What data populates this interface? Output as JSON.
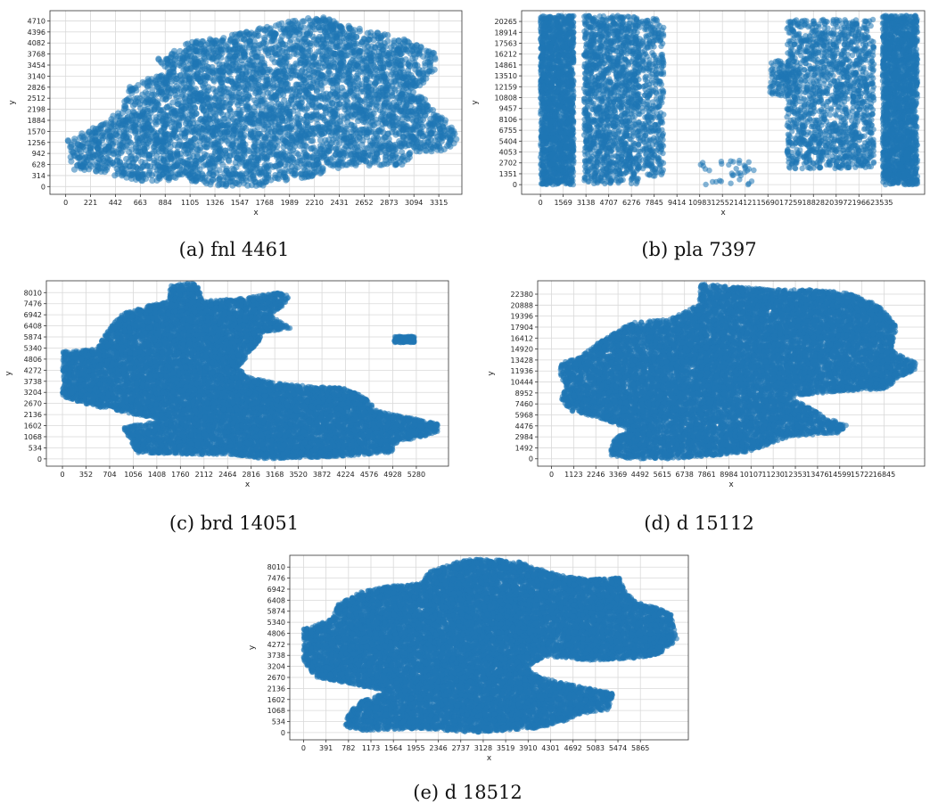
{
  "chart_data": [
    {
      "id": "a",
      "type": "scatter",
      "caption": "(a) fnl 4461",
      "xlabel": "x",
      "ylabel": "y",
      "grid": true,
      "xlim": [
        -140,
        3520
      ],
      "ylim": [
        -220,
        5000
      ],
      "xticks": [
        0,
        221,
        442,
        663,
        884,
        1105,
        1326,
        1547,
        1768,
        1989,
        2210,
        2431,
        2652,
        2873,
        3094,
        3315
      ],
      "yticks": [
        0,
        314,
        628,
        942,
        1256,
        1570,
        1884,
        2198,
        2512,
        2826,
        3140,
        3454,
        3768,
        4082,
        4396,
        4710
      ],
      "color": "#1f77b4",
      "n_points": 4461,
      "point_alpha": 0.55,
      "regions": [
        {
          "poly": [
            [
              0,
              1300
            ],
            [
              200,
              1600
            ],
            [
              500,
              2200
            ],
            [
              550,
              2800
            ],
            [
              900,
              3300
            ],
            [
              800,
              3600
            ],
            [
              1100,
              4100
            ],
            [
              1400,
              4250
            ],
            [
              2000,
              4700
            ],
            [
              2250,
              4850
            ],
            [
              2500,
              4600
            ],
            [
              3000,
              4200
            ],
            [
              3300,
              3800
            ],
            [
              3300,
              3300
            ],
            [
              3200,
              3000
            ],
            [
              3100,
              2700
            ],
            [
              3200,
              2500
            ],
            [
              3300,
              2200
            ],
            [
              3350,
              2000
            ],
            [
              3450,
              1600
            ],
            [
              3500,
              1300
            ],
            [
              3350,
              1000
            ],
            [
              3100,
              1000
            ],
            [
              3000,
              600
            ],
            [
              2500,
              600
            ],
            [
              2200,
              300
            ],
            [
              1700,
              0
            ],
            [
              1400,
              0
            ],
            [
              1000,
              200
            ],
            [
              700,
              150
            ],
            [
              300,
              400
            ],
            [
              0,
              500
            ],
            [
              50,
              900
            ]
          ],
          "weight": 1.0
        }
      ]
    },
    {
      "id": "b",
      "type": "scatter",
      "caption": "(b) pla 7397",
      "xlabel": "x",
      "ylabel": "y",
      "grid": true,
      "xlim": [
        -1300,
        26500
      ],
      "ylim": [
        -1200,
        21600
      ],
      "xticks": [
        0,
        1569,
        3138,
        4707,
        6276,
        7845,
        9414,
        10983,
        12552,
        14121,
        15690,
        17259,
        18828,
        20397,
        21966,
        23535
      ],
      "yticks": [
        0,
        1351,
        2702,
        4053,
        5404,
        6755,
        8106,
        9457,
        10808,
        12159,
        13510,
        14861,
        16212,
        17563,
        18914,
        20265
      ],
      "color": "#1f77b4",
      "n_points": 7397,
      "point_alpha": 0.55,
      "regions": [
        {
          "poly": [
            [
              0,
              0
            ],
            [
              2300,
              0
            ],
            [
              2300,
              21000
            ],
            [
              0,
              21000
            ]
          ],
          "weight": 0.26
        },
        {
          "poly": [
            [
              23600,
              0
            ],
            [
              26000,
              0
            ],
            [
              26000,
              21000
            ],
            [
              23600,
              21000
            ]
          ],
          "weight": 0.26
        },
        {
          "poly": [
            [
              3000,
              100
            ],
            [
              6900,
              100
            ],
            [
              6900,
              21000
            ],
            [
              3000,
              21000
            ]
          ],
          "weight": 0.2
        },
        {
          "poly": [
            [
              7000,
              1000
            ],
            [
              8500,
              1000
            ],
            [
              8500,
              20600
            ],
            [
              7000,
              20600
            ]
          ],
          "weight": 0.05
        },
        {
          "poly": [
            [
              17000,
              2000
            ],
            [
              23000,
              2000
            ],
            [
              23000,
              20500
            ],
            [
              17000,
              20500
            ]
          ],
          "weight": 0.2
        },
        {
          "poly": [
            [
              15800,
              11000
            ],
            [
              17500,
              11000
            ],
            [
              17500,
              15500
            ],
            [
              15800,
              15500
            ]
          ],
          "weight": 0.015
        },
        {
          "poly": [
            [
              11000,
              0
            ],
            [
              15000,
              0
            ],
            [
              15000,
              3000
            ],
            [
              11000,
              3000
            ]
          ],
          "weight": 0.005
        }
      ]
    },
    {
      "id": "c",
      "type": "scatter",
      "caption": "(c) brd 14051",
      "xlabel": "x",
      "ylabel": "y",
      "grid": true,
      "xlim": [
        -240,
        5760
      ],
      "ylim": [
        -350,
        8580
      ],
      "xticks": [
        0,
        352,
        704,
        1056,
        1408,
        1760,
        2112,
        2464,
        2816,
        3168,
        3520,
        3872,
        4224,
        4576,
        4928,
        5280
      ],
      "yticks": [
        0,
        534,
        1068,
        1602,
        2136,
        2670,
        3204,
        3738,
        4272,
        4806,
        5340,
        5874,
        6408,
        6942,
        7476,
        8010
      ],
      "color": "#1f77b4",
      "n_points": 14051,
      "point_alpha": 0.6,
      "regions": [
        {
          "poly": [
            [
              0,
              5200
            ],
            [
              500,
              5300
            ],
            [
              700,
              6300
            ],
            [
              900,
              7000
            ],
            [
              1300,
              7400
            ],
            [
              1600,
              7600
            ],
            [
              1600,
              8400
            ],
            [
              2000,
              8500
            ],
            [
              2100,
              7600
            ],
            [
              2600,
              7700
            ],
            [
              3200,
              8000
            ],
            [
              3400,
              7900
            ],
            [
              3300,
              7400
            ],
            [
              3100,
              6900
            ],
            [
              3300,
              6500
            ],
            [
              3400,
              6300
            ],
            [
              3000,
              6100
            ],
            [
              2900,
              5500
            ],
            [
              2800,
              5200
            ],
            [
              2700,
              4700
            ],
            [
              2600,
              4400
            ],
            [
              2800,
              3900
            ],
            [
              3300,
              3600
            ],
            [
              3700,
              3500
            ],
            [
              4200,
              3400
            ],
            [
              4500,
              3000
            ],
            [
              4700,
              2300
            ],
            [
              5300,
              1900
            ],
            [
              5600,
              1700
            ],
            [
              5600,
              1300
            ],
            [
              5400,
              1100
            ],
            [
              5000,
              800
            ],
            [
              4900,
              300
            ],
            [
              4000,
              100
            ],
            [
              3000,
              0
            ],
            [
              2500,
              200
            ],
            [
              2000,
              200
            ],
            [
              1100,
              300
            ],
            [
              1000,
              1000
            ],
            [
              900,
              1500
            ],
            [
              1500,
              1900
            ],
            [
              1000,
              2200
            ],
            [
              400,
              2600
            ],
            [
              0,
              3000
            ],
            [
              0,
              4000
            ]
          ],
          "weight": 1.0
        },
        {
          "poly": [
            [
              4950,
              5600
            ],
            [
              5250,
              5600
            ],
            [
              5250,
              5900
            ],
            [
              4950,
              5900
            ]
          ],
          "weight": 0.01
        }
      ]
    },
    {
      "id": "d",
      "type": "scatter",
      "caption": "(d) d 15112",
      "xlabel": "x",
      "ylabel": "y",
      "grid": true,
      "xlim": [
        -700,
        18900
      ],
      "ylim": [
        -1000,
        24200
      ],
      "xticks": [
        0,
        1123,
        2246,
        3369,
        4492,
        5615,
        6738,
        7861,
        8984,
        10107,
        11230,
        12353,
        13476,
        14599,
        15722,
        16845
      ],
      "yticks": [
        0,
        1492,
        2984,
        4476,
        5968,
        7460,
        8952,
        10444,
        11936,
        13428,
        14920,
        16412,
        17904,
        19396,
        20888,
        22380
      ],
      "color": "#1f77b4",
      "n_points": 15112,
      "point_alpha": 0.6,
      "regions": [
        {
          "poly": [
            [
              500,
              13000
            ],
            [
              1500,
              14000
            ],
            [
              2500,
              16000
            ],
            [
              4000,
              18500
            ],
            [
              6000,
              19000
            ],
            [
              7500,
              21000
            ],
            [
              7500,
              23800
            ],
            [
              9000,
              23500
            ],
            [
              11000,
              23000
            ],
            [
              13500,
              23000
            ],
            [
              15000,
              22500
            ],
            [
              16500,
              21000
            ],
            [
              17500,
              18000
            ],
            [
              17200,
              15000
            ],
            [
              17700,
              14000
            ],
            [
              18500,
              13000
            ],
            [
              18400,
              12000
            ],
            [
              17500,
              11000
            ],
            [
              17000,
              9500
            ],
            [
              14000,
              9000
            ],
            [
              12000,
              8500
            ],
            [
              13000,
              7000
            ],
            [
              14000,
              5500
            ],
            [
              15000,
              4500
            ],
            [
              14500,
              3500
            ],
            [
              12000,
              3000
            ],
            [
              10000,
              1000
            ],
            [
              8500,
              500
            ],
            [
              6000,
              0
            ],
            [
              4000,
              0
            ],
            [
              3000,
              500
            ],
            [
              3000,
              2500
            ],
            [
              4000,
              4000
            ],
            [
              2500,
              5500
            ],
            [
              1000,
              6500
            ],
            [
              500,
              8000
            ],
            [
              700,
              10000
            ],
            [
              400,
              11500
            ]
          ],
          "weight": 1.0
        }
      ]
    },
    {
      "id": "e",
      "type": "scatter",
      "caption": "(e) d 18512",
      "xlabel": "x",
      "ylabel": "y",
      "grid": true,
      "xlim": [
        -240,
        6700
      ],
      "ylim": [
        -350,
        8580
      ],
      "xticks": [
        0,
        391,
        782,
        1173,
        1564,
        1955,
        2346,
        2737,
        3128,
        3519,
        3910,
        4301,
        4692,
        5083,
        5474,
        5865
      ],
      "yticks": [
        0,
        534,
        1068,
        1602,
        2136,
        2670,
        3204,
        3738,
        4272,
        4806,
        5340,
        5874,
        6408,
        6942,
        7476,
        8010
      ],
      "color": "#1f77b4",
      "n_points": 18512,
      "point_alpha": 0.6,
      "regions": [
        {
          "poly": [
            [
              0,
              5000
            ],
            [
              500,
              5500
            ],
            [
              600,
              6200
            ],
            [
              1000,
              6800
            ],
            [
              1500,
              7100
            ],
            [
              2000,
              7200
            ],
            [
              2200,
              7800
            ],
            [
              2700,
              8300
            ],
            [
              3000,
              8400
            ],
            [
              3700,
              8300
            ],
            [
              4500,
              7600
            ],
            [
              5000,
              7400
            ],
            [
              5500,
              7500
            ],
            [
              5600,
              6800
            ],
            [
              5800,
              6300
            ],
            [
              6200,
              6000
            ],
            [
              6400,
              5700
            ],
            [
              6500,
              4500
            ],
            [
              6200,
              3800
            ],
            [
              5800,
              3600
            ],
            [
              5000,
              3500
            ],
            [
              4200,
              3700
            ],
            [
              3900,
              3200
            ],
            [
              4100,
              2700
            ],
            [
              4700,
              2300
            ],
            [
              5400,
              1900
            ],
            [
              5300,
              1100
            ],
            [
              4800,
              900
            ],
            [
              4500,
              500
            ],
            [
              4000,
              200
            ],
            [
              3000,
              0
            ],
            [
              2000,
              200
            ],
            [
              1000,
              100
            ],
            [
              700,
              300
            ],
            [
              800,
              1000
            ],
            [
              1000,
              1500
            ],
            [
              1500,
              2000
            ],
            [
              900,
              2300
            ],
            [
              200,
              2700
            ],
            [
              0,
              3500
            ]
          ],
          "weight": 1.0
        }
      ]
    }
  ]
}
